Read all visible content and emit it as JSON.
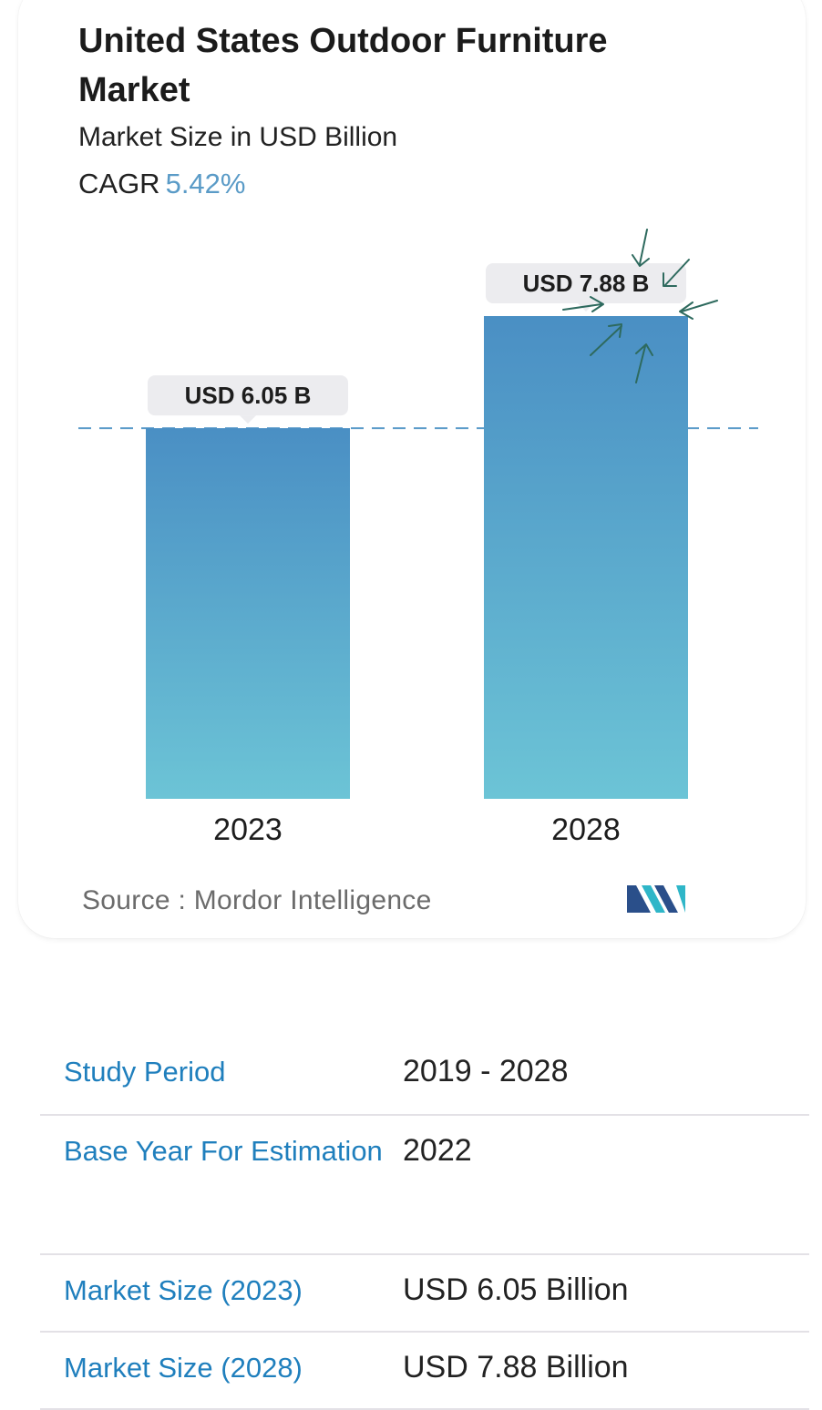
{
  "title": "United States Outdoor Furniture Market",
  "subtitle": "Market Size in USD Billion",
  "cagr_label": "CAGR",
  "cagr_value": "5.42%",
  "source_text": "Source :  Mordor Intelligence",
  "colors": {
    "bar_top": "#4a8fc4",
    "bar_bottom": "#6cc4d6",
    "cagr": "#5a9bc7",
    "spec_label": "#1f7fbd",
    "dashed_line": "#5b9bc9",
    "logo_dark": "#2a4f8a",
    "logo_teal": "#2fb6c8"
  },
  "chart_data": {
    "type": "bar",
    "categories": [
      "2023",
      "2028"
    ],
    "values": [
      6.05,
      7.88
    ],
    "data_labels": [
      "USD 6.05 B",
      "USD 7.88 B"
    ],
    "title": "United States Outdoor Furniture Market",
    "subtitle": "Market Size in USD Billion",
    "xlabel": "",
    "ylabel": "",
    "reference_line": 6.05,
    "grid": false
  },
  "specs": [
    {
      "label": "Study Period",
      "value": "2019 - 2028"
    },
    {
      "label": "Base Year For Estimation",
      "value": "2022"
    },
    {
      "label": "Market Size (2023)",
      "value": "USD 6.05 Billion"
    },
    {
      "label": "Market Size (2028)",
      "value": "USD 7.88 Billion"
    }
  ],
  "logo_icon": "mordor-intelligence-logo-icon"
}
